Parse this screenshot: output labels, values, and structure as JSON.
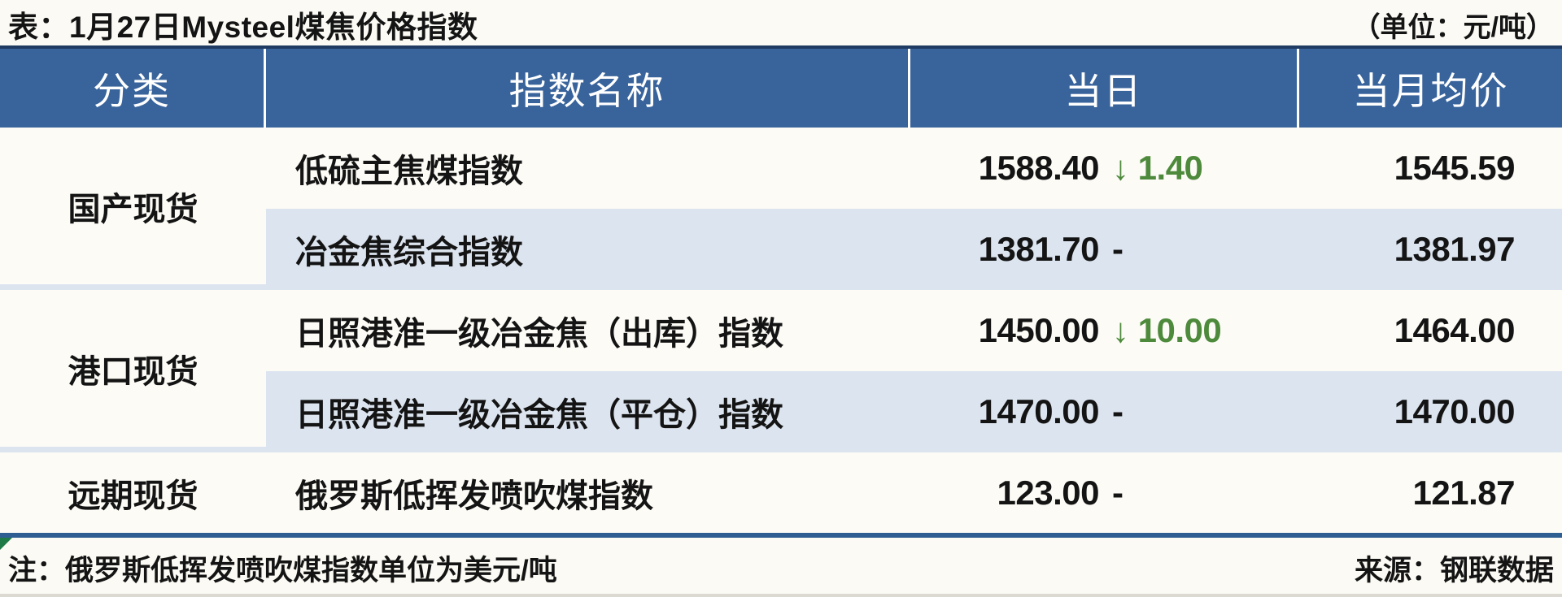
{
  "title": "表：1月27日Mysteel煤焦价格指数",
  "unit_label": "（单位：元/吨）",
  "table": {
    "headers": [
      "分类",
      "指数名称",
      "当日",
      "当月均价"
    ],
    "categories": [
      {
        "label": "国产现货"
      },
      {
        "label": "港口现货"
      },
      {
        "label": "远期现货"
      }
    ],
    "rows": [
      {
        "name": "低硫主焦煤指数",
        "value": "1588.40",
        "change": "↓ 1.40",
        "avg": "1545.59"
      },
      {
        "name": "冶金焦综合指数",
        "value": "1381.70",
        "change": "-",
        "avg": "1381.97"
      },
      {
        "name": "日照港准一级冶金焦（出库）指数",
        "value": "1450.00",
        "change": "↓ 10.00",
        "avg": "1464.00"
      },
      {
        "name": "日照港准一级冶金焦（平仓）指数",
        "value": "1470.00",
        "change": "-",
        "avg": "1470.00"
      },
      {
        "name": "俄罗斯低挥发喷吹煤指数",
        "value": "123.00",
        "change": "-",
        "avg": "121.87"
      }
    ]
  },
  "footer": {
    "note": "注：俄罗斯低挥发喷吹煤指数单位为美元/吨",
    "source": "来源：钢联数据"
  },
  "colors": {
    "header_bg": "#38639B",
    "alt_row": "#DCE4EF",
    "down_green": "#4E8A3C",
    "top_border": "#1F3A63",
    "bottom_border": "#2F5E92",
    "page_bg": "#FBFAF4"
  },
  "chart_data": {
    "type": "table",
    "title": "表：1月27日Mysteel煤焦价格指数",
    "unit": "元/吨",
    "columns": [
      "分类",
      "指数名称",
      "当日",
      "当日涨跌",
      "当月均价"
    ],
    "rows": [
      [
        "国产现货",
        "低硫主焦煤指数",
        1588.4,
        -1.4,
        1545.59
      ],
      [
        "国产现货",
        "冶金焦综合指数",
        1381.7,
        null,
        1381.97
      ],
      [
        "港口现货",
        "日照港准一级冶金焦（出库）指数",
        1450.0,
        -10.0,
        1464.0
      ],
      [
        "港口现货",
        "日照港准一级冶金焦（平仓）指数",
        1470.0,
        null,
        1470.0
      ],
      [
        "远期现货",
        "俄罗斯低挥发喷吹煤指数",
        123.0,
        null,
        121.87
      ]
    ],
    "notes": "注：俄罗斯低挥发喷吹煤指数单位为美元/吨",
    "source": "来源：钢联数据"
  }
}
